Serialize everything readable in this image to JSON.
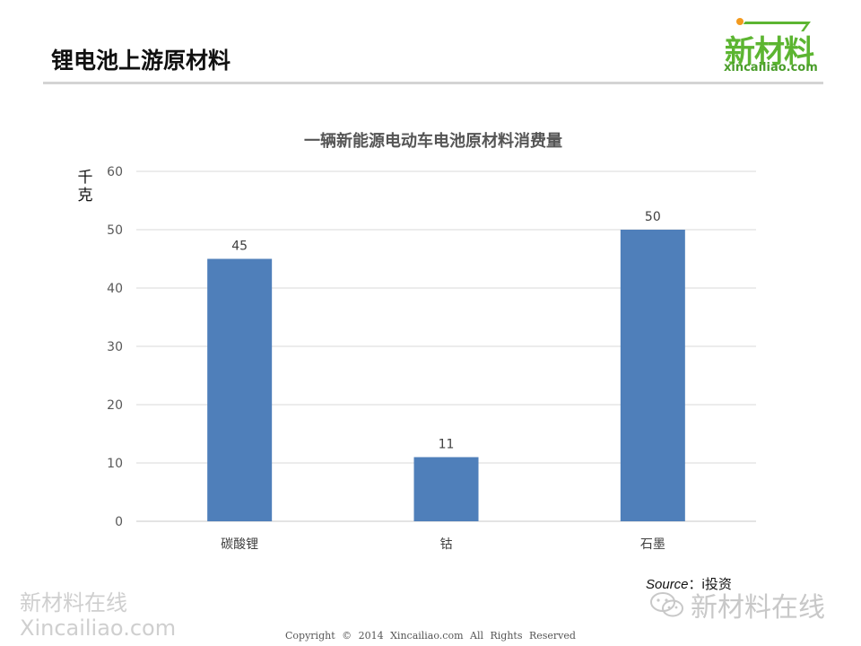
{
  "slide": {
    "title": "锂电池上游原材料"
  },
  "logo": {
    "name": "新材料",
    "url": "xincailiao.com",
    "colors": {
      "green": "#5cb531",
      "orange": "#f39a1e"
    }
  },
  "chart_data": {
    "type": "bar",
    "title": "一辆新能源电动车电池原材料消费量",
    "ylabel": "千克",
    "xlabel": "",
    "categories": [
      "碳酸锂",
      "钴",
      "石墨"
    ],
    "values": [
      45,
      11,
      50
    ],
    "data_labels": [
      "45",
      "11",
      "50"
    ],
    "ylim": [
      0,
      60
    ],
    "yticks": [
      0,
      10,
      20,
      30,
      40,
      50,
      60
    ],
    "ytick_labels": [
      "0",
      "10",
      "20",
      "30",
      "40",
      "50",
      "60"
    ],
    "grid": true,
    "legend": "none",
    "bar_color": "#4f7fba"
  },
  "source": {
    "label": "Source",
    "separator": "：",
    "value": "i投资"
  },
  "watermarks": {
    "left_line1": "新材料在线",
    "left_line2": "Xincailiao.com",
    "right": "新材料在线",
    "right_icon": "wechat-icon"
  },
  "footer": {
    "copyright": "Copyright © 2014 Xincailiao.com All Rights Reserved"
  }
}
